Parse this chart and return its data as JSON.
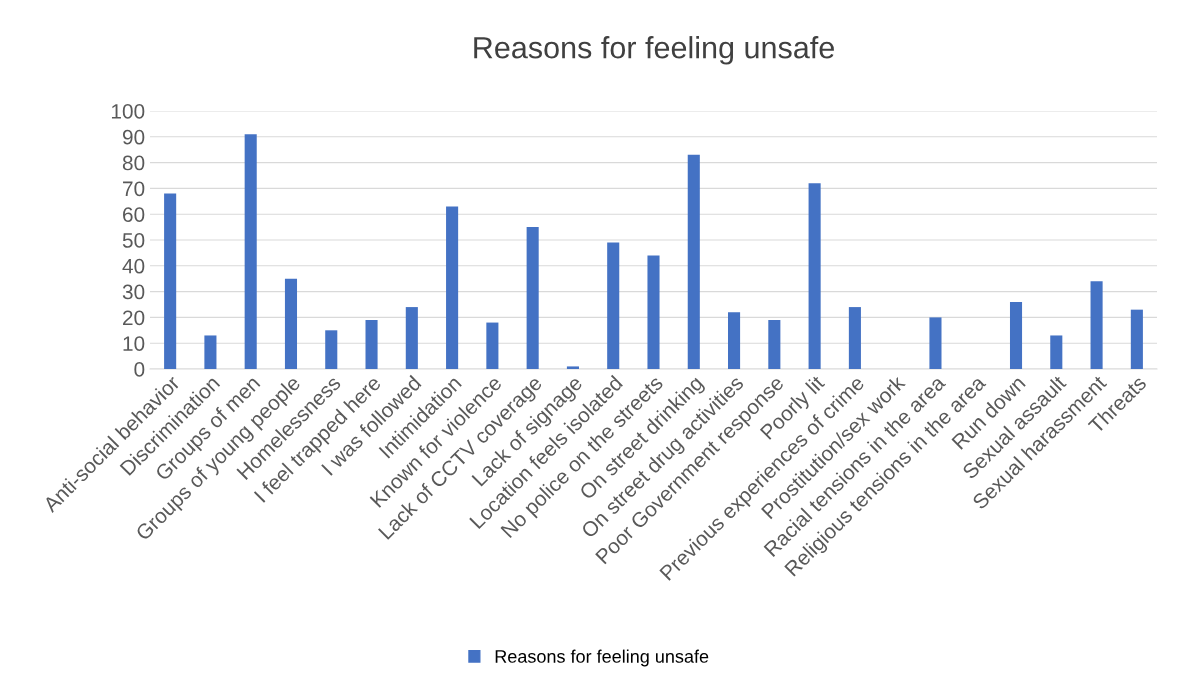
{
  "chart_data": {
    "type": "bar",
    "title": "Reasons for feeling unsafe",
    "categories": [
      "Anti-social behavior",
      "Discrimination",
      "Groups of men",
      "Groups of young people",
      "Homelessness",
      "I feel trapped here",
      "I was followed",
      "Intimidation",
      "Known for violence",
      "Lack of CCTV coverage",
      "Lack of signage",
      "Location feels isolated",
      "No police on the streets",
      "On street drinking",
      "On street drug activities",
      "Poor Government response",
      "Poorly lit",
      "Previous experiences of crime",
      "Prostitution/sex work",
      "Racial tensions in the area",
      "Religious tensions in the area",
      "Run down",
      "Sexual assault",
      "Sexual harassment",
      "Threats"
    ],
    "series": [
      {
        "name": "Reasons for feeling unsafe",
        "color": "#4472c4",
        "values": [
          68,
          13,
          91,
          35,
          15,
          19,
          24,
          63,
          18,
          55,
          1,
          49,
          44,
          83,
          22,
          19,
          72,
          24,
          0,
          20,
          0,
          26,
          13,
          34,
          23
        ]
      }
    ],
    "ylim": [
      0,
      100
    ],
    "yticks": [
      0,
      10,
      20,
      30,
      40,
      50,
      60,
      70,
      80,
      90,
      100
    ],
    "grid": "y",
    "legend": "bottom"
  }
}
